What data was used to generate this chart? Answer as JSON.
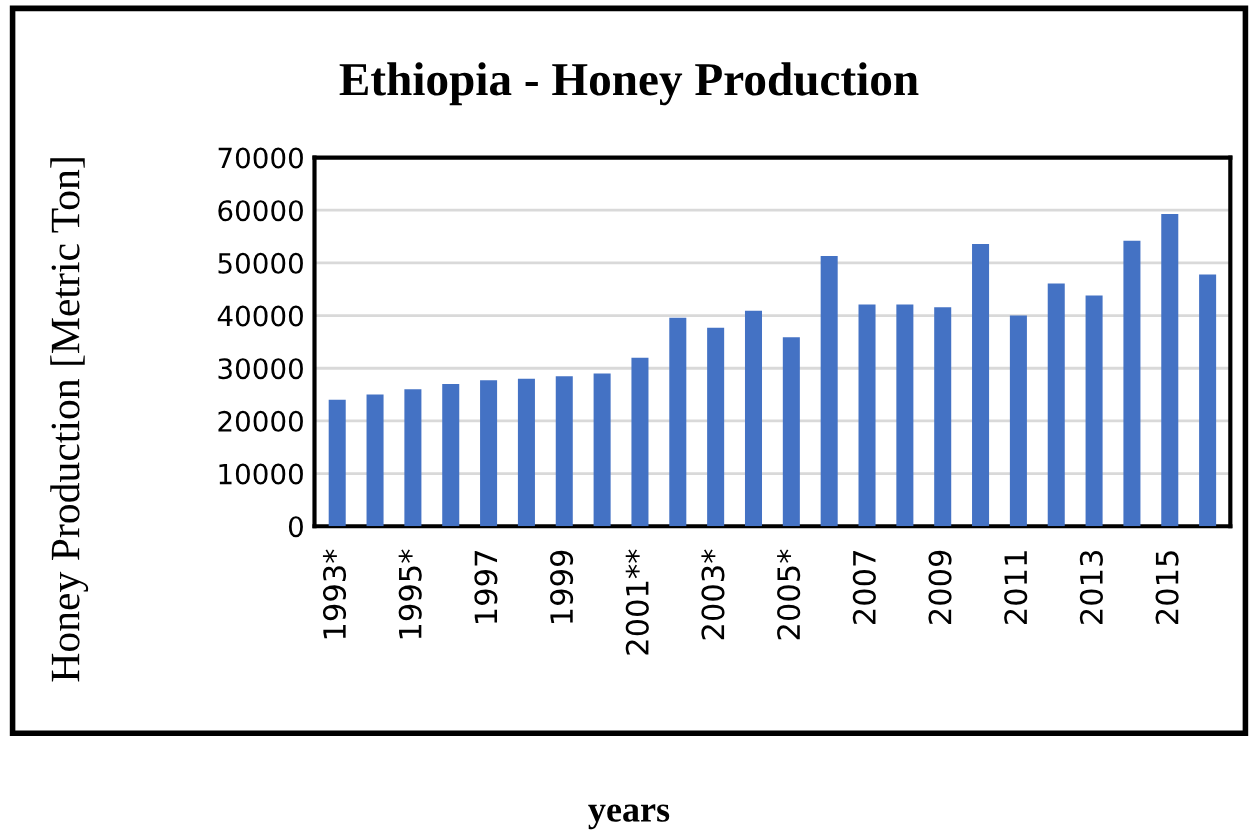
{
  "chart_data": {
    "type": "bar",
    "title": "Ethiopia - Honey Production",
    "xlabel": "years",
    "ylabel": "Honey Production [Metric Ton]",
    "categories": [
      "1993*",
      null,
      "1995*",
      null,
      "1997",
      null,
      "1999",
      null,
      "2001**",
      null,
      "2003*",
      null,
      "2005*",
      null,
      "2007",
      null,
      "2009",
      null,
      "2011",
      null,
      "2013",
      null,
      "2015",
      null
    ],
    "values": [
      24000,
      25000,
      26000,
      27000,
      27700,
      28000,
      28500,
      29000,
      32000,
      39600,
      37700,
      40900,
      35900,
      51300,
      42100,
      42100,
      41600,
      53600,
      40000,
      46100,
      43800,
      54200,
      59300,
      47800
    ],
    "color": "#4472c4",
    "ylim": [
      0,
      70000
    ],
    "yticks": [
      0,
      10000,
      20000,
      30000,
      40000,
      50000,
      60000,
      70000
    ],
    "grid": "y",
    "legend": false
  }
}
